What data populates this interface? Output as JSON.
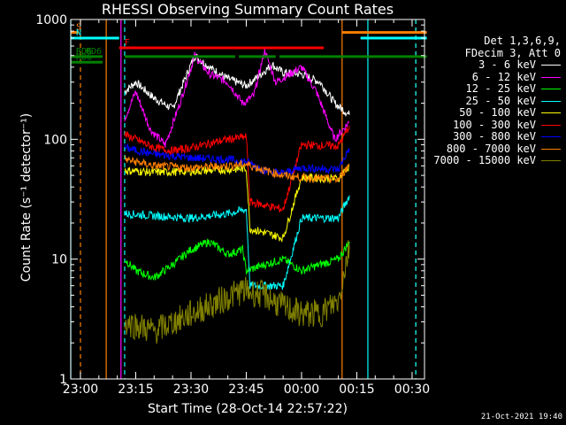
{
  "chart_data": {
    "type": "line",
    "title": "RHESSI Observing Summary Count Rates",
    "xlabel": "Start Time (28-Oct-14 22:57:22)",
    "ylabel": "Count Rate (s⁻¹ detector⁻¹)",
    "yscale": "log",
    "ylim": [
      1,
      1000
    ],
    "x_tick_labels": [
      "23:00",
      "23:15",
      "23:30",
      "23:45",
      "00:00",
      "00:15",
      "00:30"
    ],
    "y_tick_labels": [
      "1",
      "10",
      "100",
      "1000"
    ],
    "legend_header": [
      "Det 1,3,6,9,",
      "FDecim 3, Att 0"
    ],
    "series": [
      {
        "name": "3 - 6 keV",
        "color": "#ffffff",
        "points": [
          [
            "23:12",
            250
          ],
          [
            "23:15",
            300
          ],
          [
            "23:20",
            220
          ],
          [
            "23:25",
            180
          ],
          [
            "23:28",
            300
          ],
          [
            "23:31",
            500
          ],
          [
            "23:35",
            400
          ],
          [
            "23:40",
            320
          ],
          [
            "23:45",
            280
          ],
          [
            "23:48",
            330
          ],
          [
            "23:52",
            420
          ],
          [
            "23:55",
            360
          ],
          [
            "00:00",
            350
          ],
          [
            "00:05",
            300
          ],
          [
            "00:09",
            200
          ],
          [
            "00:13",
            160
          ]
        ]
      },
      {
        "name": "6 - 12 keV",
        "color": "#ff00ff",
        "points": [
          [
            "23:12",
            150
          ],
          [
            "23:15",
            250
          ],
          [
            "23:19",
            120
          ],
          [
            "23:23",
            90
          ],
          [
            "23:27",
            200
          ],
          [
            "23:31",
            500
          ],
          [
            "23:35",
            350
          ],
          [
            "23:40",
            300
          ],
          [
            "23:44",
            200
          ],
          [
            "23:47",
            230
          ],
          [
            "23:50",
            550
          ],
          [
            "23:53",
            300
          ],
          [
            "00:00",
            400
          ],
          [
            "00:04",
            250
          ],
          [
            "00:09",
            100
          ],
          [
            "00:13",
            140
          ]
        ]
      },
      {
        "name": "12 - 25 keV",
        "color": "#00ff00",
        "points": [
          [
            "23:12",
            10
          ],
          [
            "23:15",
            8
          ],
          [
            "23:20",
            7
          ],
          [
            "23:25",
            9
          ],
          [
            "23:30",
            12
          ],
          [
            "23:35",
            14
          ],
          [
            "23:40",
            11
          ],
          [
            "23:44",
            12
          ],
          [
            "23:45",
            8
          ],
          [
            "23:50",
            9
          ],
          [
            "23:55",
            10
          ],
          [
            "00:00",
            8
          ],
          [
            "00:05",
            9
          ],
          [
            "00:10",
            10
          ],
          [
            "00:13",
            14
          ]
        ]
      },
      {
        "name": "25 - 50 keV",
        "color": "#00ffff",
        "points": [
          [
            "23:12",
            24
          ],
          [
            "23:20",
            23
          ],
          [
            "23:30",
            22
          ],
          [
            "23:40",
            24
          ],
          [
            "23:45",
            26
          ],
          [
            "23:46",
            6
          ],
          [
            "23:55",
            6
          ],
          [
            "00:00",
            22
          ],
          [
            "00:10",
            22
          ],
          [
            "00:13",
            34
          ]
        ]
      },
      {
        "name": "50 - 100 keV",
        "color": "#ffff00",
        "points": [
          [
            "23:12",
            55
          ],
          [
            "23:20",
            53
          ],
          [
            "23:30",
            54
          ],
          [
            "23:40",
            56
          ],
          [
            "23:45",
            57
          ],
          [
            "23:46",
            18
          ],
          [
            "23:55",
            15
          ],
          [
            "00:00",
            48
          ],
          [
            "00:10",
            47
          ],
          [
            "00:13",
            60
          ]
        ]
      },
      {
        "name": "100 - 300 keV",
        "color": "#ff0000",
        "points": [
          [
            "23:12",
            110
          ],
          [
            "23:20",
            85
          ],
          [
            "23:25",
            80
          ],
          [
            "23:30",
            85
          ],
          [
            "23:40",
            100
          ],
          [
            "23:45",
            105
          ],
          [
            "23:46",
            30
          ],
          [
            "23:55",
            26
          ],
          [
            "00:00",
            90
          ],
          [
            "00:10",
            88
          ],
          [
            "00:13",
            130
          ]
        ]
      },
      {
        "name": "300 - 800 keV",
        "color": "#0000ff",
        "points": [
          [
            "23:12",
            85
          ],
          [
            "23:20",
            75
          ],
          [
            "23:30",
            70
          ],
          [
            "23:40",
            68
          ],
          [
            "23:45",
            65
          ],
          [
            "23:50",
            55
          ],
          [
            "23:55",
            52
          ],
          [
            "00:00",
            58
          ],
          [
            "00:10",
            56
          ],
          [
            "00:13",
            85
          ]
        ]
      },
      {
        "name": "800 - 7000 keV",
        "color": "#ff8000",
        "points": [
          [
            "23:12",
            68
          ],
          [
            "23:20",
            60
          ],
          [
            "23:30",
            58
          ],
          [
            "23:40",
            60
          ],
          [
            "23:45",
            62
          ],
          [
            "23:50",
            55
          ],
          [
            "23:55",
            50
          ],
          [
            "00:00",
            48
          ],
          [
            "00:10",
            46
          ],
          [
            "00:13",
            62
          ]
        ]
      },
      {
        "name": "7000 - 15000 keV",
        "color": "#808000",
        "points": [
          [
            "23:12",
            3
          ],
          [
            "23:20",
            2.5
          ],
          [
            "23:30",
            3.5
          ],
          [
            "23:38",
            4.5
          ],
          [
            "23:44",
            5.5
          ],
          [
            "23:50",
            5
          ],
          [
            "23:55",
            4
          ],
          [
            "00:00",
            3.5
          ],
          [
            "00:05",
            3.5
          ],
          [
            "00:10",
            4.5
          ],
          [
            "00:13",
            13
          ]
        ]
      }
    ],
    "status_bars": [
      {
        "label": "S",
        "color": "#ff8000",
        "segments": [
          [
            "22:57:22",
            "22:59:30"
          ],
          [
            "00:11",
            "00:34"
          ]
        ],
        "level": 780
      },
      {
        "label": "N",
        "color": "#00ffff",
        "segments": [
          [
            "22:57:22",
            "23:10:30"
          ],
          [
            "00:16",
            "00:34"
          ]
        ],
        "level": 700
      },
      {
        "label": "F",
        "color": "#ff0000",
        "segments": [
          [
            "23:10:30",
            "00:06"
          ]
        ],
        "level": 580
      },
      {
        "label": "RD6",
        "color": "#008000",
        "segments": [
          [
            "22:57:22",
            "23:00"
          ],
          [
            "23:43",
            "23:53"
          ]
        ],
        "level": 490
      },
      {
        "label": "RD6",
        "color": "#008000",
        "segments": [
          [
            "23:00",
            "23:06"
          ],
          [
            "23:12",
            "23:42"
          ],
          [
            "23:54",
            "00:34"
          ]
        ],
        "level": 490
      },
      {
        "label": "RD6",
        "color": "#008000",
        "segments": [
          [
            "22:57:22",
            "23:06"
          ]
        ],
        "level": 440
      }
    ],
    "vertical_markers": [
      {
        "time": "22:57:22",
        "color": "#00ffff",
        "style": "solid"
      },
      {
        "time": "23:00",
        "color": "#ff8000",
        "style": "dashed"
      },
      {
        "time": "23:07",
        "color": "#ff8000",
        "style": "solid"
      },
      {
        "time": "23:11",
        "color": "#ff00ff",
        "style": "solid"
      },
      {
        "time": "23:12",
        "color": "#00ffff",
        "style": "dashed"
      },
      {
        "time": "00:11",
        "color": "#ff8000",
        "style": "solid"
      },
      {
        "time": "00:18",
        "color": "#00ffff",
        "style": "solid"
      },
      {
        "time": "00:31",
        "color": "#ff8000",
        "style": "dashed"
      },
      {
        "time": "00:31",
        "color": "#00ffff",
        "style": "dashed"
      }
    ],
    "timestamp": "21-Oct-2021 19:40"
  }
}
